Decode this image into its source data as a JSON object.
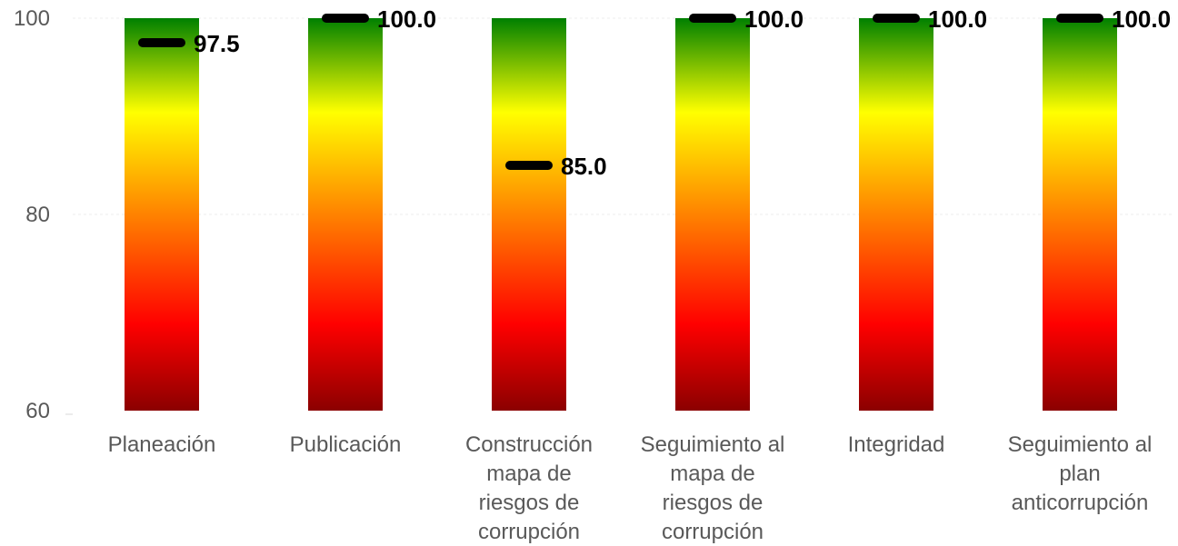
{
  "chart_data": {
    "type": "bar",
    "title": "",
    "xlabel": "",
    "ylabel": "",
    "ylim": [
      60,
      100
    ],
    "yticks": [
      60,
      80,
      100
    ],
    "grid": true,
    "categories": [
      [
        "Planeación"
      ],
      [
        "Publicación"
      ],
      [
        "Construcción",
        "mapa de",
        "riesgos de",
        "corrupción"
      ],
      [
        "Seguimiento al",
        "mapa de",
        "riesgos de",
        "corrupción"
      ],
      [
        "Integridad"
      ],
      [
        "Seguimiento al",
        "plan",
        "anticorrupción"
      ]
    ],
    "values": [
      97.5,
      100.0,
      85.0,
      100.0,
      100.0,
      100.0
    ],
    "value_labels": [
      "97.5",
      "100.0",
      "85.0",
      "100.0",
      "100.0",
      "100.0"
    ],
    "bar_color_scale": [
      "#8b0000",
      "#ff0000",
      "#ff8c00",
      "#ffff00",
      "#008000"
    ],
    "marker_color": "#000000"
  }
}
